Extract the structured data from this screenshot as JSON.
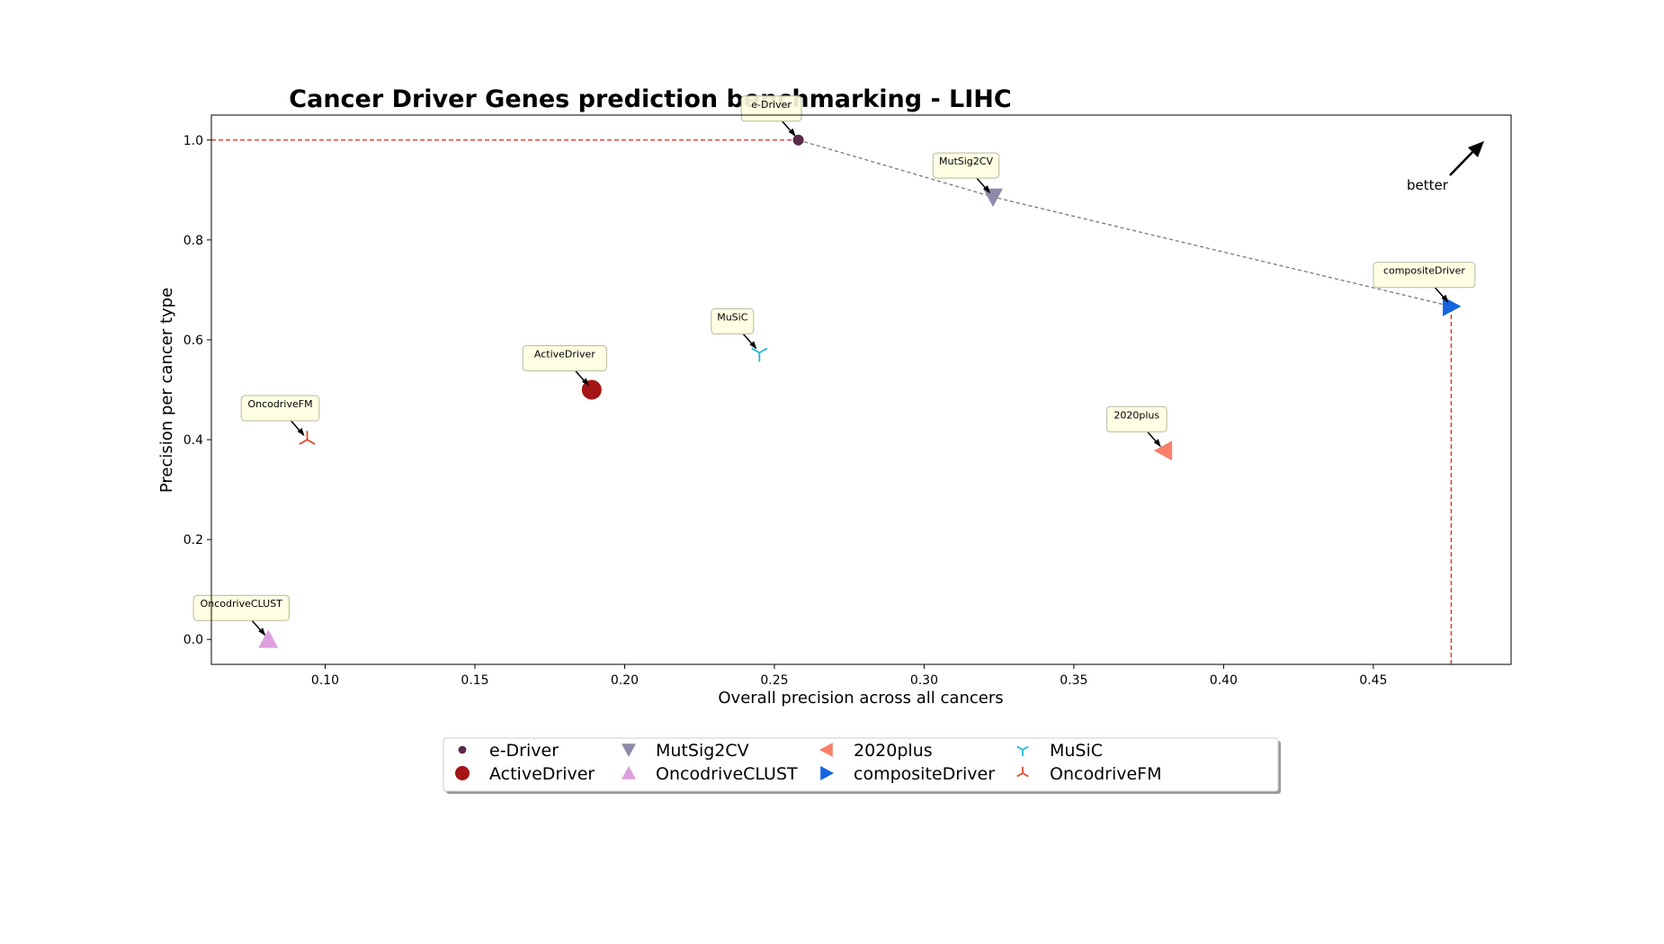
{
  "chart_data": {
    "type": "scatter",
    "title": "Cancer Driver Genes prediction benchmarking - LIHC",
    "xlabel": "Overall precision across all cancers",
    "ylabel": "Precision per cancer type",
    "xlim": [
      0.062,
      0.496
    ],
    "ylim": [
      -0.05,
      1.05
    ],
    "x_ticks": [
      0.1,
      0.15,
      0.2,
      0.25,
      0.3,
      0.35,
      0.4,
      0.45
    ],
    "x_tick_labels": [
      "0.10",
      "0.15",
      "0.20",
      "0.25",
      "0.30",
      "0.35",
      "0.40",
      "0.45"
    ],
    "y_ticks": [
      0.0,
      0.2,
      0.4,
      0.6,
      0.8,
      1.0
    ],
    "y_tick_labels": [
      "0.0",
      "0.2",
      "0.4",
      "0.6",
      "0.8",
      "1.0"
    ],
    "grid": false,
    "legend_position": "below plot, center",
    "series": [
      {
        "name": "e-Driver",
        "x": 0.258,
        "y": 1.0,
        "marker": "circle-small",
        "color": "#5c2a4a"
      },
      {
        "name": "ActiveDriver",
        "x": 0.189,
        "y": 0.5,
        "marker": "circle",
        "color": "#a51515"
      },
      {
        "name": "MutSig2CV",
        "x": 0.323,
        "y": 0.886,
        "marker": "triangle-down",
        "color": "#8e8aab"
      },
      {
        "name": "OncodriveCLUST",
        "x": 0.081,
        "y": 0.0,
        "marker": "triangle-up",
        "color": "#dda0dd"
      },
      {
        "name": "2020plus",
        "x": 0.38,
        "y": 0.378,
        "marker": "triangle-left",
        "color": "#f8806b"
      },
      {
        "name": "compositeDriver",
        "x": 0.476,
        "y": 0.667,
        "marker": "triangle-right",
        "color": "#1464e0"
      },
      {
        "name": "MuSiC",
        "x": 0.245,
        "y": 0.574,
        "marker": "tri-down",
        "color": "#25b8d8"
      },
      {
        "name": "OncodriveFM",
        "x": 0.094,
        "y": 0.4,
        "marker": "tri-up",
        "color": "#e5482c"
      }
    ],
    "annotations": [
      {
        "text": "e-Driver",
        "target": "e-Driver"
      },
      {
        "text": "MutSig2CV",
        "target": "MutSig2CV"
      },
      {
        "text": "compositeDriver",
        "target": "compositeDriver"
      },
      {
        "text": "MuSiC",
        "target": "MuSiC"
      },
      {
        "text": "ActiveDriver",
        "target": "ActiveDriver"
      },
      {
        "text": "OncodriveFM",
        "target": "OncodriveFM"
      },
      {
        "text": "2020plus",
        "target": "2020plus"
      },
      {
        "text": "OncodriveCLUST",
        "target": "OncodriveCLUST"
      }
    ],
    "pareto_front": [
      "e-Driver",
      "MutSig2CV",
      "compositeDriver"
    ],
    "reference_lines": [
      {
        "orientation": "horizontal",
        "y": 1.0,
        "x_range": [
          0.062,
          0.258
        ],
        "color": "#e8241c",
        "style": "dashed"
      },
      {
        "orientation": "vertical",
        "x": 0.476,
        "y_range": [
          -0.05,
          0.667
        ],
        "color": "#e8241c",
        "style": "dashed"
      }
    ],
    "better_label": "better"
  }
}
